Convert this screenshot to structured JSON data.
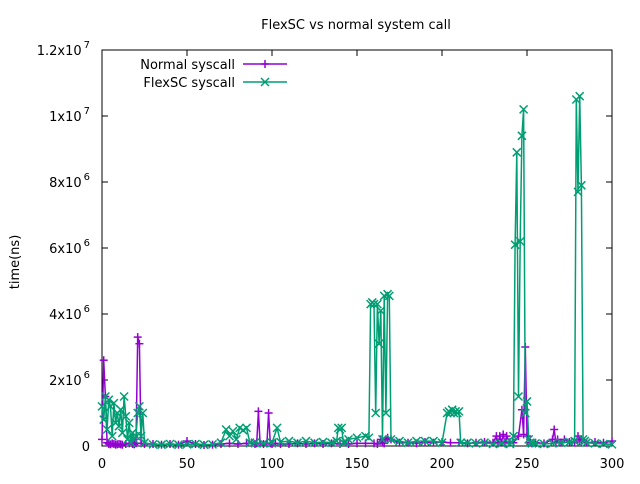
{
  "chart_data": {
    "type": "line",
    "title": "FlexSC vs normal system call",
    "xlabel": "",
    "ylabel": "time(ns)",
    "xlim": [
      0,
      300
    ],
    "ylim": [
      0,
      12000000
    ],
    "x_ticks": [
      "0",
      "50",
      "100",
      "150",
      "200",
      "250",
      "300"
    ],
    "x_tick_values": [
      0,
      50,
      100,
      150,
      200,
      250,
      300
    ],
    "y_ticks": [
      {
        "value": 0,
        "base": "0",
        "exp": ""
      },
      {
        "value": 2000000,
        "base": "2x10",
        "exp": "6"
      },
      {
        "value": 4000000,
        "base": "4x10",
        "exp": "6"
      },
      {
        "value": 6000000,
        "base": "6x10",
        "exp": "6"
      },
      {
        "value": 8000000,
        "base": "8x10",
        "exp": "6"
      },
      {
        "value": 10000000,
        "base": "1x10",
        "exp": "7"
      },
      {
        "value": 12000000,
        "base": "1.2x10",
        "exp": "7"
      }
    ],
    "grid": false,
    "legend_position": "top-left",
    "series": [
      {
        "name": "Normal syscall",
        "color": "#9400d3",
        "marker": "plus",
        "x": [
          0,
          1,
          2,
          3,
          4,
          5,
          6,
          7,
          8,
          9,
          10,
          11,
          12,
          14,
          16,
          18,
          19,
          20,
          21,
          22,
          23,
          25,
          30,
          35,
          40,
          45,
          50,
          55,
          60,
          65,
          70,
          75,
          80,
          85,
          88,
          90,
          91,
          92,
          93,
          95,
          97,
          98,
          99,
          100,
          102,
          105,
          110,
          115,
          120,
          125,
          130,
          135,
          140,
          145,
          150,
          155,
          160,
          162,
          164,
          165,
          166,
          167,
          168,
          170,
          175,
          180,
          185,
          190,
          195,
          200,
          205,
          210,
          215,
          220,
          225,
          230,
          232,
          233,
          234,
          235,
          236,
          237,
          238,
          240,
          242,
          245,
          247,
          248,
          249,
          250,
          252,
          255,
          260,
          265,
          266,
          267,
          268,
          270,
          272,
          275,
          278,
          280,
          281,
          282,
          285,
          290,
          295,
          300
        ],
        "y": [
          200000,
          2600000,
          1500000,
          100000,
          60000,
          50000,
          80000,
          60000,
          40000,
          50000,
          60000,
          50000,
          40000,
          60000,
          80000,
          60000,
          50000,
          80000,
          3300000,
          3100000,
          80000,
          60000,
          60000,
          40000,
          60000,
          40000,
          150000,
          60000,
          30000,
          40000,
          60000,
          80000,
          60000,
          80000,
          80000,
          60000,
          80000,
          1050000,
          80000,
          60000,
          80000,
          1000000,
          80000,
          60000,
          80000,
          60000,
          60000,
          80000,
          60000,
          80000,
          60000,
          80000,
          60000,
          60000,
          80000,
          80000,
          80000,
          60000,
          200000,
          100000,
          80000,
          200000,
          250000,
          200000,
          100000,
          100000,
          80000,
          120000,
          100000,
          120000,
          100000,
          100000,
          80000,
          100000,
          120000,
          100000,
          300000,
          100000,
          300000,
          100000,
          350000,
          100000,
          300000,
          120000,
          100000,
          300000,
          1100000,
          350000,
          3000000,
          300000,
          100000,
          100000,
          80000,
          200000,
          500000,
          100000,
          200000,
          100000,
          200000,
          120000,
          100000,
          300000,
          150000,
          200000,
          100000,
          120000,
          100000,
          150000
        ]
      },
      {
        "name": "FlexSC syscall",
        "color": "#009e73",
        "marker": "x",
        "x": [
          0,
          1,
          2,
          3,
          4,
          5,
          6,
          7,
          8,
          9,
          10,
          11,
          12,
          13,
          14,
          15,
          16,
          17,
          18,
          19,
          20,
          21,
          22,
          23,
          24,
          25,
          30,
          35,
          40,
          45,
          50,
          55,
          60,
          65,
          70,
          73,
          75,
          77,
          79,
          81,
          83,
          85,
          87,
          90,
          95,
          100,
          103,
          105,
          110,
          115,
          120,
          125,
          130,
          135,
          138,
          139,
          140,
          141,
          142,
          143,
          145,
          150,
          155,
          157,
          158,
          159,
          160,
          161,
          162,
          163,
          164,
          165,
          166,
          167,
          168,
          169,
          170,
          175,
          180,
          185,
          190,
          195,
          200,
          203,
          204,
          205,
          206,
          207,
          208,
          209,
          210,
          211,
          215,
          220,
          225,
          230,
          235,
          240,
          241,
          242,
          243,
          244,
          245,
          246,
          247,
          248,
          249,
          250,
          251,
          252,
          253,
          255,
          260,
          265,
          270,
          275,
          278,
          279,
          280,
          281,
          282,
          283,
          284,
          285,
          290,
          295,
          300
        ],
        "y": [
          1200000,
          800000,
          1500000,
          500000,
          1400000,
          1200000,
          300000,
          1300000,
          700000,
          1000000,
          600000,
          1100000,
          400000,
          1500000,
          900000,
          200000,
          700000,
          100000,
          400000,
          200000,
          300000,
          1000000,
          1200000,
          300000,
          1000000,
          100000,
          50000,
          40000,
          60000,
          40000,
          50000,
          60000,
          40000,
          50000,
          100000,
          500000,
          300000,
          450000,
          200000,
          550000,
          480000,
          550000,
          100000,
          100000,
          80000,
          100000,
          550000,
          120000,
          150000,
          100000,
          150000,
          100000,
          120000,
          100000,
          150000,
          550000,
          500000,
          550000,
          100000,
          150000,
          200000,
          250000,
          300000,
          250000,
          4300000,
          4350000,
          4300000,
          1000000,
          4300000,
          3100000,
          4100000,
          200000,
          4550000,
          1000000,
          4600000,
          4550000,
          200000,
          150000,
          100000,
          150000,
          150000,
          150000,
          100000,
          1000000,
          1050000,
          1000000,
          1100000,
          1000000,
          1050000,
          1000000,
          1050000,
          100000,
          100000,
          80000,
          100000,
          60000,
          80000,
          60000,
          100000,
          300000,
          6100000,
          8900000,
          1500000,
          6200000,
          9400000,
          10200000,
          1000000,
          1350000,
          200000,
          100000,
          80000,
          80000,
          60000,
          80000,
          100000,
          120000,
          150000,
          10500000,
          7700000,
          10600000,
          7900000,
          200000,
          150000,
          100000,
          80000,
          60000,
          50000
        ]
      }
    ]
  }
}
